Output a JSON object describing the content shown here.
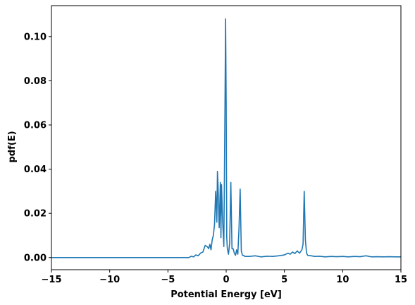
{
  "chart_data": {
    "type": "line",
    "xlabel": "Potential Energy [eV]",
    "ylabel": "pdf(E)",
    "xlim": [
      -15,
      15
    ],
    "ylim": [
      -0.0055,
      0.114
    ],
    "x_ticks": [
      -15,
      -10,
      -5,
      0,
      5,
      10,
      15
    ],
    "x_tick_labels": [
      "−15",
      "−10",
      "−5",
      "0",
      "5",
      "10",
      "15"
    ],
    "y_ticks": [
      0.0,
      0.02,
      0.04,
      0.06,
      0.08,
      0.1
    ],
    "y_tick_labels": [
      "0.00",
      "0.02",
      "0.04",
      "0.06",
      "0.08",
      "0.10"
    ],
    "grid": false,
    "legend": "none",
    "series": [
      {
        "color": "#1f77b4",
        "x": [
          -15,
          -3.2,
          -3.0,
          -2.8,
          -2.6,
          -2.4,
          -2.2,
          -2.0,
          -1.8,
          -1.6,
          -1.5,
          -1.4,
          -1.3,
          -1.2,
          -1.1,
          -1.0,
          -0.9,
          -0.8,
          -0.75,
          -0.7,
          -0.6,
          -0.5,
          -0.45,
          -0.4,
          -0.3,
          -0.2,
          -0.1,
          -0.05,
          0.0,
          0.05,
          0.1,
          0.2,
          0.3,
          0.4,
          0.5,
          0.6,
          0.7,
          0.8,
          0.9,
          1.0,
          1.1,
          1.2,
          1.3,
          1.4,
          1.5,
          1.6,
          2.0,
          2.5,
          3.0,
          3.5,
          4.0,
          4.5,
          5.0,
          5.3,
          5.5,
          5.7,
          5.9,
          6.1,
          6.3,
          6.5,
          6.6,
          6.7,
          6.8,
          6.9,
          7.0,
          7.3,
          7.6,
          8.0,
          8.5,
          9.0,
          9.5,
          10.0,
          10.5,
          11.0,
          11.5,
          12.0,
          12.5,
          13.0,
          13.5,
          14.0,
          14.5,
          15.0
        ],
        "y": [
          0.0,
          0.0,
          0.0006,
          0.0003,
          0.0012,
          0.0008,
          0.002,
          0.0025,
          0.0055,
          0.0048,
          0.004,
          0.006,
          0.0035,
          0.008,
          0.01,
          0.015,
          0.03,
          0.016,
          0.039,
          0.033,
          0.0135,
          0.034,
          0.009,
          0.033,
          0.016,
          0.005,
          0.07,
          0.108,
          0.07,
          0.009,
          0.004,
          0.0015,
          0.0065,
          0.034,
          0.004,
          0.004,
          0.002,
          0.001,
          0.0035,
          0.0015,
          0.013,
          0.031,
          0.003,
          0.001,
          0.001,
          0.0005,
          0.0005,
          0.0008,
          0.0003,
          0.0006,
          0.0005,
          0.0008,
          0.0012,
          0.002,
          0.0015,
          0.0025,
          0.0018,
          0.003,
          0.002,
          0.0035,
          0.006,
          0.03,
          0.008,
          0.002,
          0.001,
          0.0008,
          0.0005,
          0.0006,
          0.0003,
          0.0005,
          0.0004,
          0.0005,
          0.0003,
          0.0005,
          0.0004,
          0.0008,
          0.0003,
          0.0004,
          0.0003,
          0.0004,
          0.0003,
          0.0003
        ]
      }
    ]
  }
}
